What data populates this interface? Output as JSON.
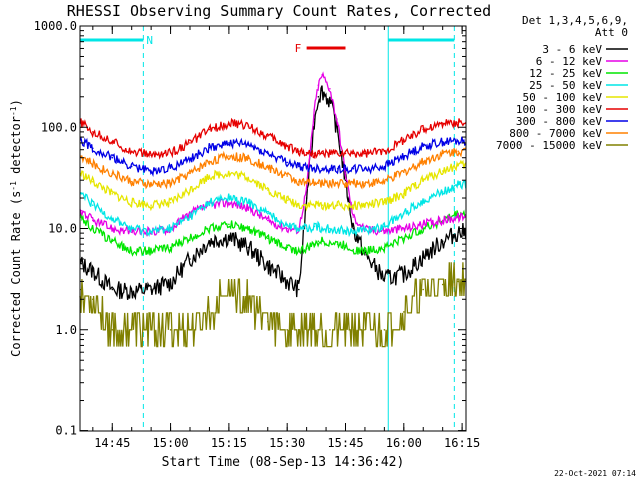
{
  "chart_data": {
    "type": "line",
    "title": "RHESSI Observing Summary Count Rates, Corrected",
    "xlabel": "Start Time (08-Sep-13 14:36:42)",
    "ylabel": "Corrected Count Rate (s⁻¹ detector⁻¹)",
    "ylabel_main": "Corrected Count Rate (s",
    "ylabel_sup1": "-1",
    "ylabel_mid": " detector",
    "ylabel_sup2": "-1",
    "ylabel_end": ")",
    "yscale": "log",
    "ylim": [
      0.1,
      1000
    ],
    "xlim": [
      "14:36:42",
      "16:16:00"
    ],
    "x_ticks": [
      "14:45",
      "15:00",
      "15:15",
      "15:30",
      "15:45",
      "16:00",
      "16:15"
    ],
    "y_ticks": [
      "0.1",
      "1.0",
      "10.0",
      "100.0",
      "1000.0"
    ],
    "legend_header_1": "Det 1,3,4,5,6,9,",
    "legend_header_2": "Att 0",
    "legend_position": "right",
    "x_samples": [
      "14:37",
      "14:40",
      "14:45",
      "14:50",
      "14:55",
      "15:00",
      "15:05",
      "15:10",
      "15:15",
      "15:20",
      "15:25",
      "15:30",
      "15:33",
      "15:35",
      "15:37",
      "15:38",
      "15:39",
      "15:41",
      "15:43",
      "15:45",
      "15:47",
      "15:50",
      "15:55",
      "16:00",
      "16:05",
      "16:10",
      "16:14"
    ],
    "series": [
      {
        "name": "3 - 6 keV",
        "color": "#000000",
        "values": [
          4.5,
          3.8,
          2.5,
          2.4,
          2.5,
          2.9,
          5.0,
          7.5,
          8.2,
          6.5,
          4.3,
          3.0,
          2.5,
          20,
          120,
          200,
          230,
          180,
          90,
          30,
          10,
          5.5,
          3.2,
          3.5,
          5.2,
          7.5,
          9.2
        ]
      },
      {
        "name": "6 - 12 keV",
        "color": "#e600e6",
        "values": [
          15,
          12,
          10,
          9.2,
          9.3,
          10,
          14,
          17,
          18,
          16,
          12,
          10,
          9.8,
          25,
          150,
          260,
          330,
          240,
          110,
          35,
          13,
          9.8,
          9.5,
          10,
          11,
          12,
          13
        ]
      },
      {
        "name": "12 - 25 keV",
        "color": "#00e600",
        "values": [
          13,
          10,
          7.5,
          6.0,
          6.0,
          6.5,
          8.0,
          10,
          11,
          10,
          8.0,
          6.5,
          6.0,
          6.3,
          7.0,
          7.5,
          7.5,
          7.3,
          7.0,
          6.8,
          6.2,
          6.0,
          6.5,
          8.0,
          10,
          12,
          14
        ]
      },
      {
        "name": "25 - 50 keV",
        "color": "#00e6e6",
        "values": [
          22,
          17,
          12.5,
          10,
          9.3,
          10,
          13,
          18,
          20,
          18,
          14,
          11,
          10,
          10,
          10.5,
          10.5,
          10,
          10,
          9.8,
          9.5,
          9.5,
          9.5,
          10.5,
          14,
          19,
          23,
          27
        ]
      },
      {
        "name": "50 - 100 keV",
        "color": "#e6e600",
        "values": [
          35,
          29,
          22,
          18,
          17,
          18,
          24,
          33,
          35,
          32,
          24,
          19,
          17,
          17,
          17,
          17,
          17,
          17,
          17,
          17,
          17,
          17,
          18,
          22,
          30,
          37,
          42
        ]
      },
      {
        "name": "100 - 300 keV",
        "color": "#e60000",
        "values": [
          110,
          90,
          72,
          58,
          53,
          56,
          70,
          95,
          110,
          103,
          82,
          65,
          58,
          56,
          55,
          55,
          55,
          55,
          55,
          55,
          55,
          55,
          58,
          75,
          95,
          110,
          112
        ]
      },
      {
        "name": "300 - 800 keV",
        "color": "#0000e6",
        "values": [
          75,
          62,
          50,
          41,
          37,
          40,
          48,
          63,
          70,
          67,
          55,
          45,
          41,
          40,
          39,
          39,
          39,
          39,
          39,
          39,
          39,
          39,
          41,
          52,
          65,
          72,
          73
        ]
      },
      {
        "name": "800 - 7000 keV",
        "color": "#ff8000",
        "values": [
          52,
          43,
          35,
          29,
          27,
          28,
          35,
          46,
          52,
          49,
          40,
          33,
          29,
          28,
          28,
          28,
          28,
          28,
          28,
          28,
          28,
          28,
          29,
          36,
          46,
          55,
          58
        ]
      },
      {
        "name": "7000 - 15000 keV",
        "color": "#808000",
        "values": [
          2.5,
          2.0,
          1.0,
          1.0,
          1.0,
          1.0,
          1.0,
          1.5,
          2.5,
          2.0,
          1.2,
          1.0,
          1.0,
          1.0,
          1.0,
          1.0,
          1.0,
          1.0,
          1.0,
          1.0,
          1.0,
          1.0,
          1.0,
          1.5,
          2.5,
          2.8,
          3.0
        ]
      }
    ],
    "flags": [
      {
        "label": "N",
        "color": "#00e6e6",
        "start": "14:36:42",
        "end": "14:53:00"
      },
      {
        "label": "",
        "color": "#00e6e6",
        "start": "15:56:00",
        "end": "16:13:00"
      },
      {
        "label": "F",
        "color": "#e60000",
        "start": "15:35:00",
        "end": "15:45:00"
      }
    ],
    "night_markers": [
      "14:36:42",
      "14:53:00",
      "15:56:00",
      "16:13:00"
    ],
    "footer_date": "22-Oct-2021 07:14",
    "grid": false
  }
}
